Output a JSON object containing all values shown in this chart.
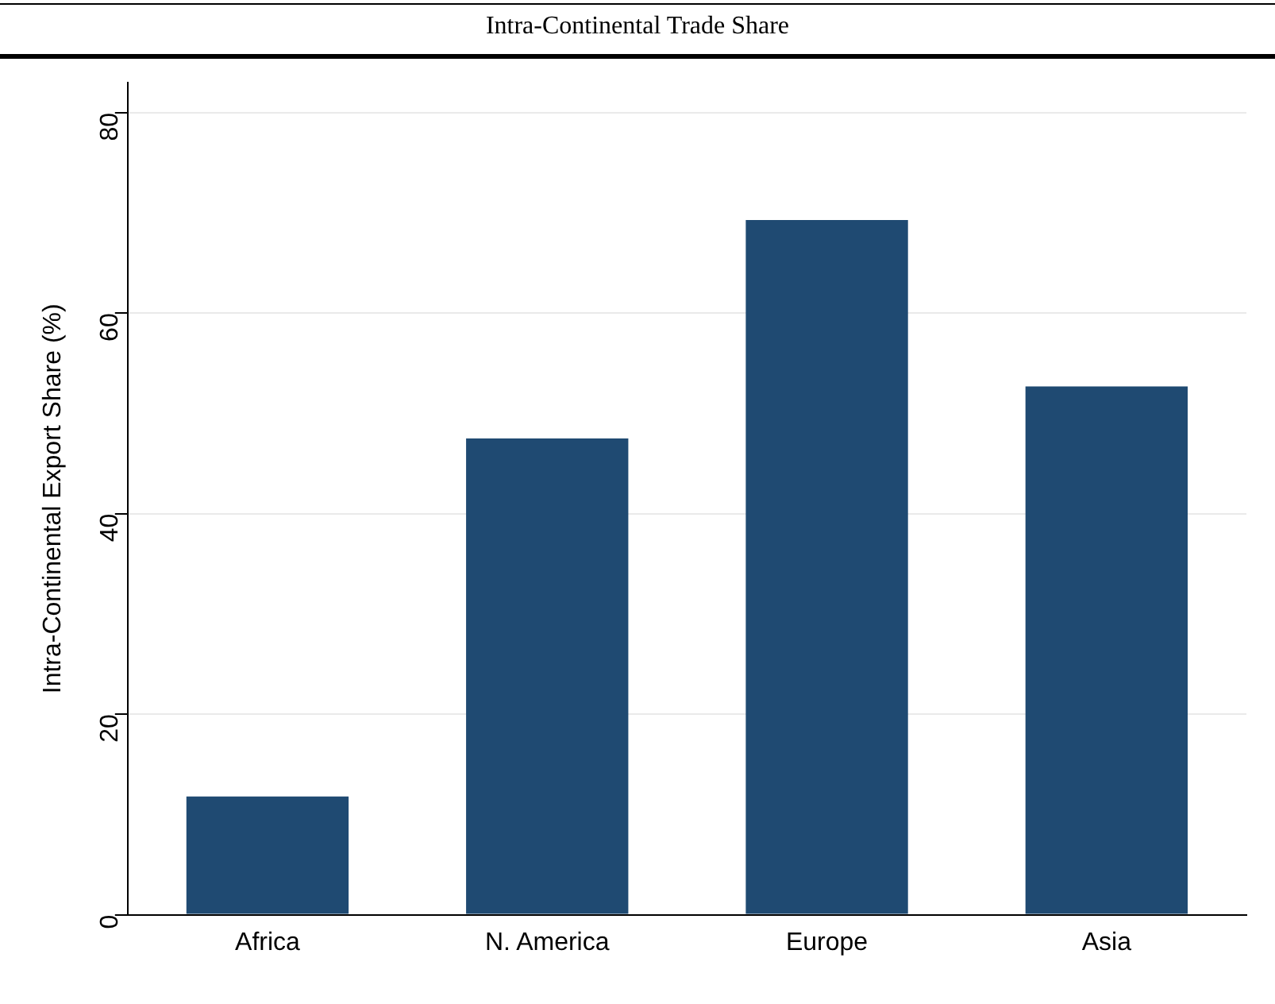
{
  "chart_data": {
    "type": "bar",
    "title": "Intra-Continental Trade Share",
    "ylabel": "Intra-Continental Export Share (%)",
    "categories": [
      "Africa",
      "N. America",
      "Europe",
      "Asia"
    ],
    "values": [
      11.8,
      47.5,
      69.3,
      52.7
    ],
    "color": "#1f4a72",
    "ylim": [
      0,
      83
    ],
    "yticks": [
      0,
      20,
      40,
      60,
      80
    ],
    "grid": "y",
    "legend": false
  }
}
